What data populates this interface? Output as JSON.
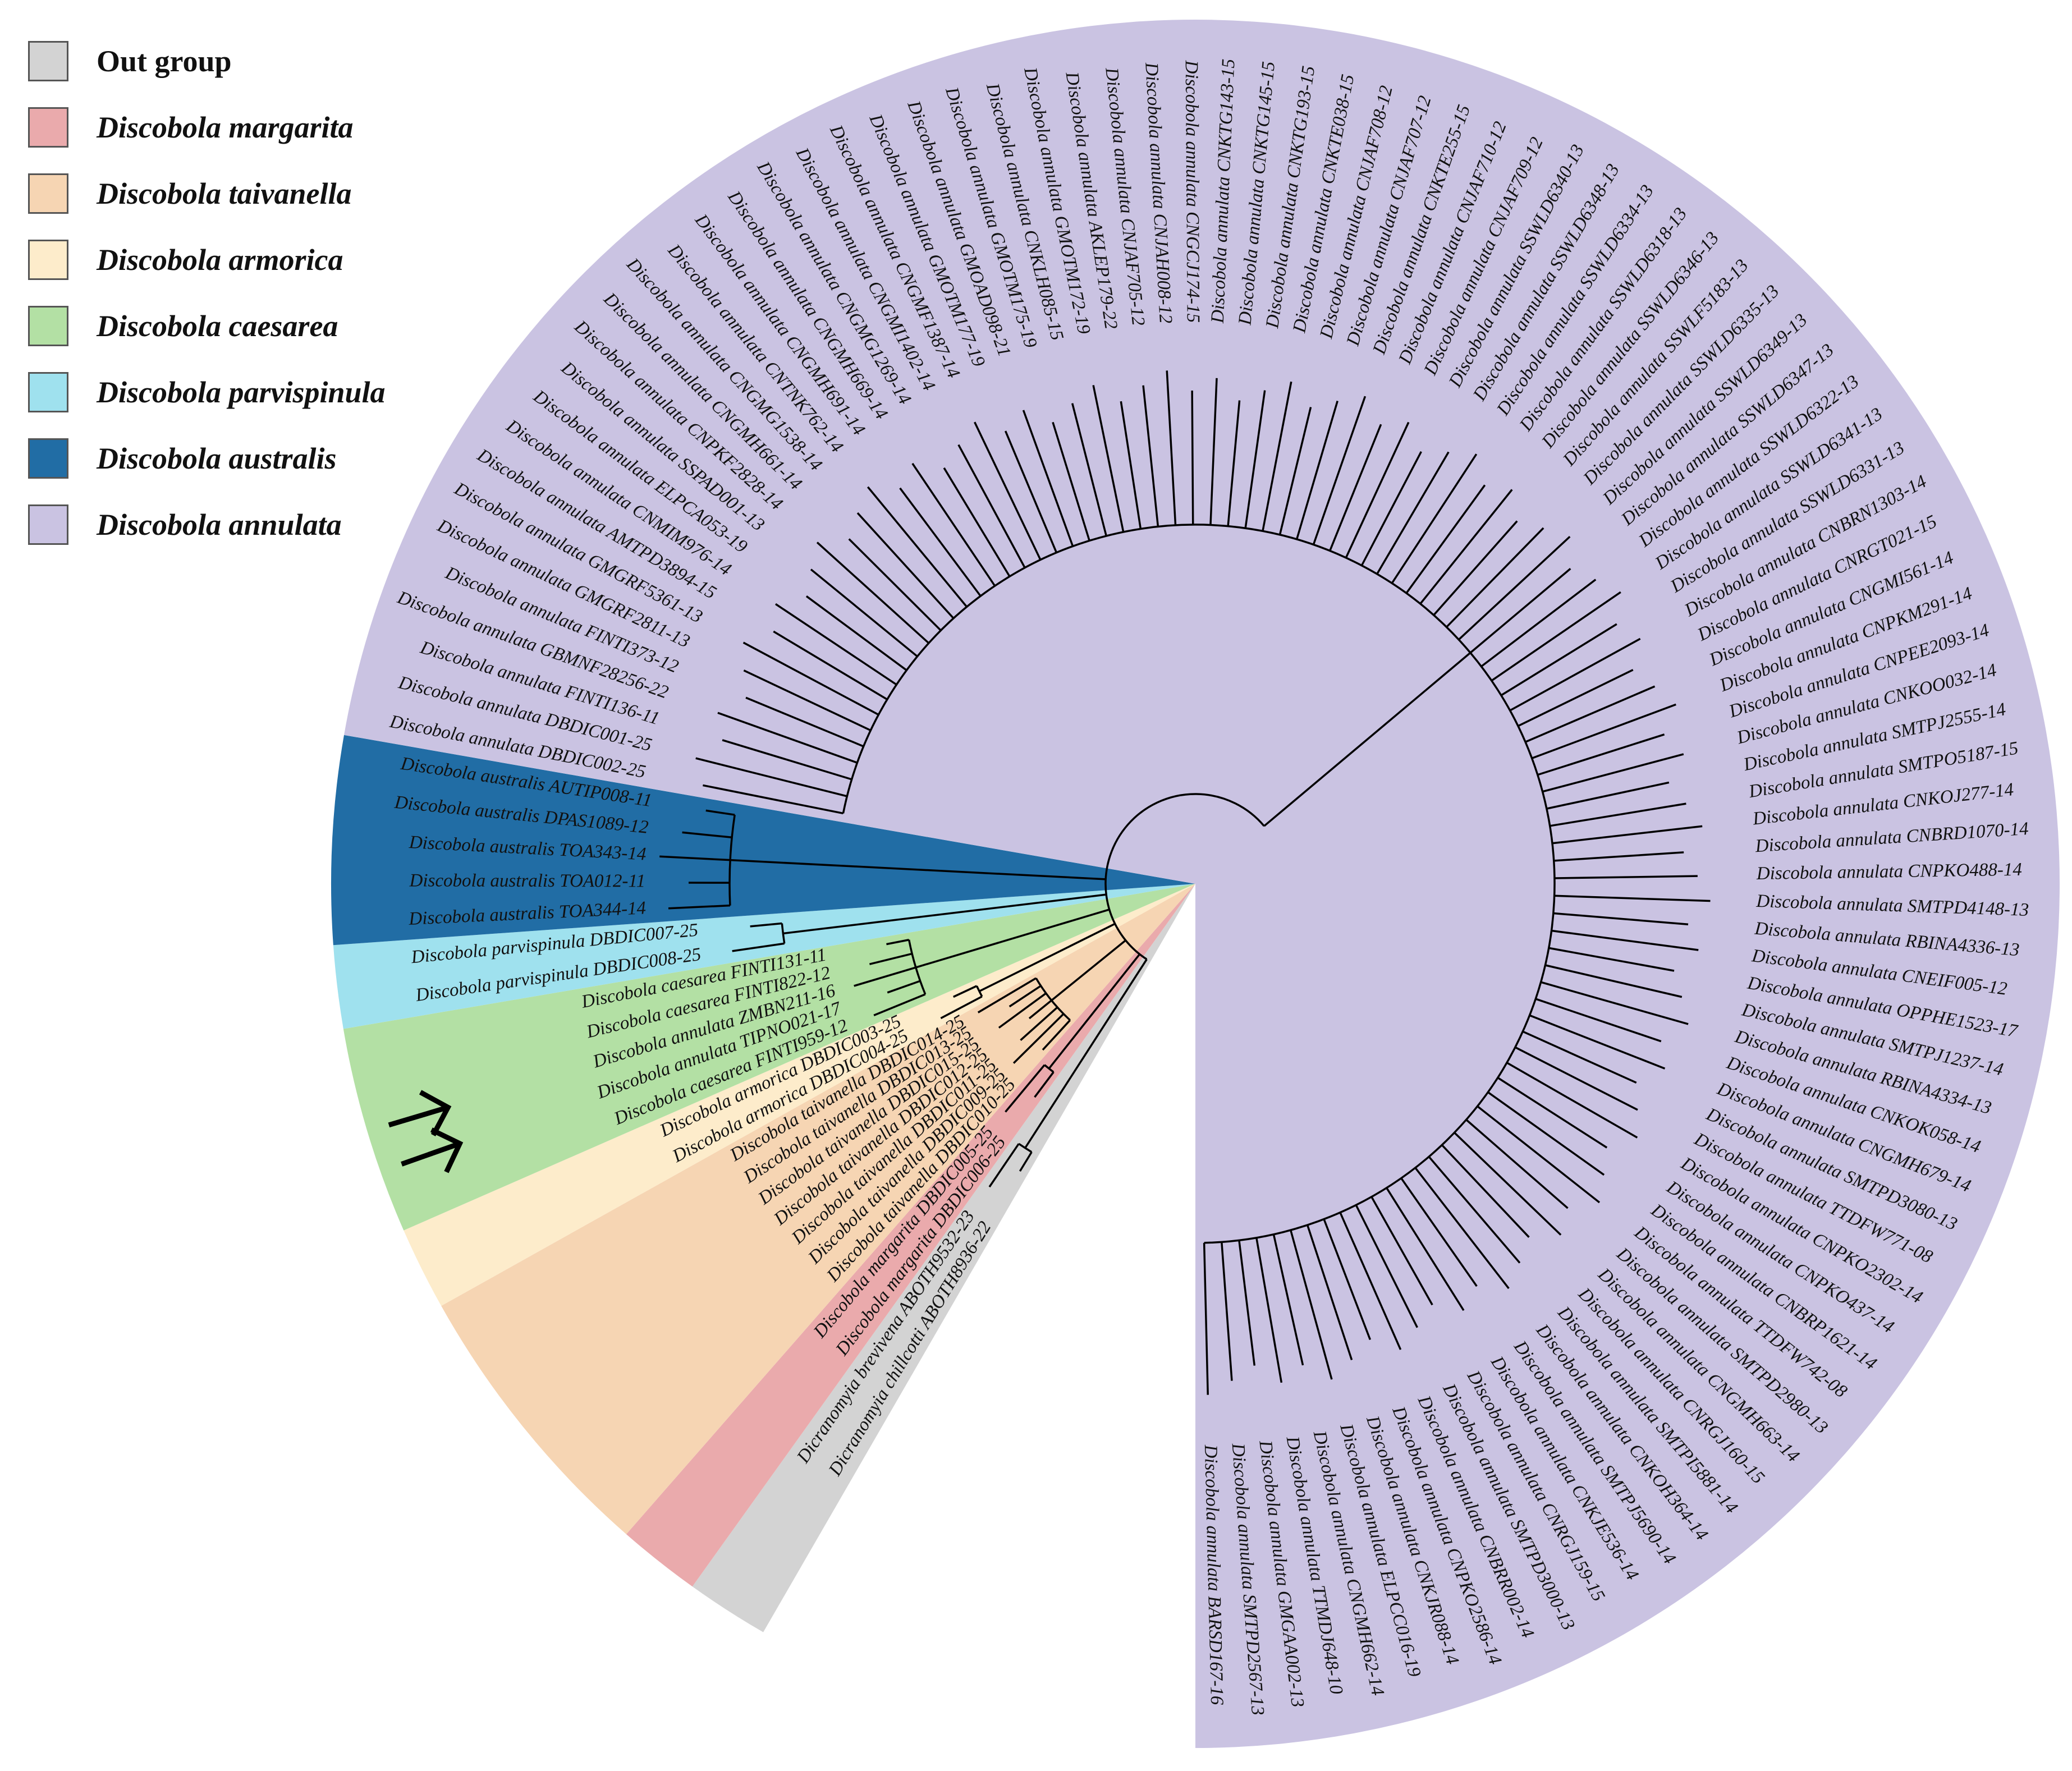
{
  "legend": [
    {
      "label": "Out group",
      "clade": "outgroup",
      "italic": false
    },
    {
      "label": "Discobola margarita",
      "clade": "margarita",
      "italic": true
    },
    {
      "label": "Discobola taivanella",
      "clade": "taivanella",
      "italic": true
    },
    {
      "label": "Discobola armorica",
      "clade": "armorica",
      "italic": true
    },
    {
      "label": "Discobola caesarea",
      "clade": "caesarea",
      "italic": true
    },
    {
      "label": "Discobola parvispinula",
      "clade": "parvispinula",
      "italic": true
    },
    {
      "label": "Discobola australis",
      "clade": "australis",
      "italic": true
    },
    {
      "label": "Discobola annulata",
      "clade": "annulata",
      "italic": true
    }
  ],
  "colors": {
    "outgroup": "#d3d3d3",
    "margarita": "#eaaaac",
    "taivanella": "#f6d5b3",
    "armorica": "#fdeccb",
    "caesarea": "#b3e0a4",
    "parvispinula": "#9fe1ee",
    "australis": "#216da5",
    "annulata": "#cac3e2"
  },
  "tree": {
    "taxa": [
      {
        "label": "Dicranomyia chillcotti ABOTH8936-22",
        "clade": "outgroup"
      },
      {
        "label": "Dicranomyia brevivena ABOTH9532-23",
        "clade": "outgroup"
      },
      {
        "label": "Discobola margarita DBDIC006-25",
        "clade": "margarita"
      },
      {
        "label": "Discobola margarita DBDIC005-25",
        "clade": "margarita"
      },
      {
        "label": "Discobola taivanella DBDIC010-25",
        "clade": "taivanella"
      },
      {
        "label": "Discobola taivanella DBDIC009-25",
        "clade": "taivanella"
      },
      {
        "label": "Discobola taivanella DBDIC011-25",
        "clade": "taivanella"
      },
      {
        "label": "Discobola taivanella DBDIC012-25",
        "clade": "taivanella"
      },
      {
        "label": "Discobola taivanella DBDIC015-25",
        "clade": "taivanella"
      },
      {
        "label": "Discobola taivanella DBDIC013-25",
        "clade": "taivanella"
      },
      {
        "label": "Discobola taivanella DBDIC014-25",
        "clade": "taivanella"
      },
      {
        "label": "Discobola armorica DBDIC004-25",
        "clade": "armorica"
      },
      {
        "label": "Discobola armorica DBDIC003-25",
        "clade": "armorica"
      },
      {
        "label": "Discobola caesarea FINTI959-12",
        "clade": "caesarea"
      },
      {
        "label": "Discobola annulata TIPNO021-17",
        "clade": "caesarea",
        "arrow": true
      },
      {
        "label": "Discobola annulata ZMBN211-16",
        "clade": "caesarea",
        "arrow": true
      },
      {
        "label": "Discobola caesarea FINTI822-12",
        "clade": "caesarea"
      },
      {
        "label": "Discobola caesarea FINTI131-11",
        "clade": "caesarea"
      },
      {
        "label": "Discobola parvispinula DBDIC008-25",
        "clade": "parvispinula"
      },
      {
        "label": "Discobola parvispinula DBDIC007-25",
        "clade": "parvispinula"
      },
      {
        "label": "Discobola australis TOA344-14",
        "clade": "australis"
      },
      {
        "label": "Discobola australis TOA012-11",
        "clade": "australis"
      },
      {
        "label": "Discobola australis TOA343-14",
        "clade": "australis"
      },
      {
        "label": "Discobola australis DPAS1089-12",
        "clade": "australis"
      },
      {
        "label": "Discobola australis AUTIP008-11",
        "clade": "australis"
      },
      {
        "label": "Discobola annulata DBDIC002-25",
        "clade": "annulata"
      },
      {
        "label": "Discobola annulata DBDIC001-25",
        "clade": "annulata"
      },
      {
        "label": "Discobola annulata FINTI136-11",
        "clade": "annulata"
      },
      {
        "label": "Discobola annulata GBMNF28256-22",
        "clade": "annulata"
      },
      {
        "label": "Discobola annulata FINTI373-12",
        "clade": "annulata"
      },
      {
        "label": "Discobola annulata GMGRF2811-13",
        "clade": "annulata"
      },
      {
        "label": "Discobola annulata GMGRF5361-13",
        "clade": "annulata"
      },
      {
        "label": "Discobola annulata AMTPD3894-15",
        "clade": "annulata"
      },
      {
        "label": "Discobola annulata CNMIM976-14",
        "clade": "annulata"
      },
      {
        "label": "Discobola annulata ELPCA053-19",
        "clade": "annulata"
      },
      {
        "label": "Discobola annulata SSPAD001-13",
        "clade": "annulata"
      },
      {
        "label": "Discobola annulata CNPKF2828-14",
        "clade": "annulata"
      },
      {
        "label": "Discobola annulata CNGMH661-14",
        "clade": "annulata"
      },
      {
        "label": "Discobola annulata CNGMG1538-14",
        "clade": "annulata"
      },
      {
        "label": "Discobola annulata CNTNK762-14",
        "clade": "annulata"
      },
      {
        "label": "Discobola annulata CNGMH691-14",
        "clade": "annulata"
      },
      {
        "label": "Discobola annulata CNGMH669-14",
        "clade": "annulata"
      },
      {
        "label": "Discobola annulata CNGMG1269-14",
        "clade": "annulata"
      },
      {
        "label": "Discobola annulata CNGMI1402-14",
        "clade": "annulata"
      },
      {
        "label": "Discobola annulata CNGMF1387-14",
        "clade": "annulata"
      },
      {
        "label": "Discobola annulata GMOTM177-19",
        "clade": "annulata"
      },
      {
        "label": "Discobola annulata GMOAD098-21",
        "clade": "annulata"
      },
      {
        "label": "Discobola annulata GMOTM175-19",
        "clade": "annulata"
      },
      {
        "label": "Discobola annulata CNKLH085-15",
        "clade": "annulata"
      },
      {
        "label": "Discobola annulata GMOTM172-19",
        "clade": "annulata"
      },
      {
        "label": "Discobola annulata AKLEP179-22",
        "clade": "annulata"
      },
      {
        "label": "Discobola annulata CNJAF705-12",
        "clade": "annulata"
      },
      {
        "label": "Discobola annulata CNJAH008-12",
        "clade": "annulata"
      },
      {
        "label": "Discobola annulata CNGCJ174-15",
        "clade": "annulata"
      },
      {
        "label": "Discobola annulata CNKTG143-15",
        "clade": "annulata"
      },
      {
        "label": "Discobola annulata CNKTG145-15",
        "clade": "annulata"
      },
      {
        "label": "Discobola annulata CNKTG193-15",
        "clade": "annulata"
      },
      {
        "label": "Discobola annulata CNKTE038-15",
        "clade": "annulata"
      },
      {
        "label": "Discobola annulata CNJAF708-12",
        "clade": "annulata"
      },
      {
        "label": "Discobola annulata CNJAF707-12",
        "clade": "annulata"
      },
      {
        "label": "Discobola annulata CNKTE255-15",
        "clade": "annulata"
      },
      {
        "label": "Discobola annulata CNJAF710-12",
        "clade": "annulata"
      },
      {
        "label": "Discobola annulata CNJAF709-12",
        "clade": "annulata"
      },
      {
        "label": "Discobola annulata SSWLD6340-13",
        "clade": "annulata"
      },
      {
        "label": "Discobola annulata SSWLD6348-13",
        "clade": "annulata"
      },
      {
        "label": "Discobola annulata SSWLD6334-13",
        "clade": "annulata"
      },
      {
        "label": "Discobola annulata SSWLD6318-13",
        "clade": "annulata"
      },
      {
        "label": "Discobola annulata SSWLD6346-13",
        "clade": "annulata"
      },
      {
        "label": "Discobola annulata SSWLF5183-13",
        "clade": "annulata"
      },
      {
        "label": "Discobola annulata SSWLD6335-13",
        "clade": "annulata"
      },
      {
        "label": "Discobola annulata SSWLD6349-13",
        "clade": "annulata"
      },
      {
        "label": "Discobola annulata SSWLD6347-13",
        "clade": "annulata"
      },
      {
        "label": "Discobola annulata SSWLD6322-13",
        "clade": "annulata"
      },
      {
        "label": "Discobola annulata SSWLD6341-13",
        "clade": "annulata"
      },
      {
        "label": "Discobola annulata SSWLD6331-13",
        "clade": "annulata"
      },
      {
        "label": "Discobola annulata CNBRN1303-14",
        "clade": "annulata"
      },
      {
        "label": "Discobola annulata CNRGT021-15",
        "clade": "annulata"
      },
      {
        "label": "Discobola annulata CNGMI561-14",
        "clade": "annulata"
      },
      {
        "label": "Discobola annulata CNPKM291-14",
        "clade": "annulata"
      },
      {
        "label": "Discobola annulata CNPEE2093-14",
        "clade": "annulata"
      },
      {
        "label": "Discobola annulata CNKOO032-14",
        "clade": "annulata"
      },
      {
        "label": "Discobola annulata SMTPJ2555-14",
        "clade": "annulata"
      },
      {
        "label": "Discobola annulata SMTPO5187-15",
        "clade": "annulata"
      },
      {
        "label": "Discobola annulata CNKOJ277-14",
        "clade": "annulata"
      },
      {
        "label": "Discobola annulata CNBRD1070-14",
        "clade": "annulata"
      },
      {
        "label": "Discobola annulata CNPKO488-14",
        "clade": "annulata"
      },
      {
        "label": "Discobola annulata SMTPD4148-13",
        "clade": "annulata"
      },
      {
        "label": "Discobola annulata RBINA4336-13",
        "clade": "annulata"
      },
      {
        "label": "Discobola annulata CNEIF005-12",
        "clade": "annulata"
      },
      {
        "label": "Discobola annulata OPPHE1523-17",
        "clade": "annulata"
      },
      {
        "label": "Discobola annulata SMTPJ1237-14",
        "clade": "annulata"
      },
      {
        "label": "Discobola annulata RBINA4334-13",
        "clade": "annulata"
      },
      {
        "label": "Discobola annulata CNKOK058-14",
        "clade": "annulata"
      },
      {
        "label": "Discobola annulata CNGMH679-14",
        "clade": "annulata"
      },
      {
        "label": "Discobola annulata SMTPD3080-13",
        "clade": "annulata"
      },
      {
        "label": "Discobola annulata TTDFW771-08",
        "clade": "annulata"
      },
      {
        "label": "Discobola annulata CNPKO2302-14",
        "clade": "annulata"
      },
      {
        "label": "Discobola annulata CNPKO437-14",
        "clade": "annulata"
      },
      {
        "label": "Discobola annulata CNBRP1621-14",
        "clade": "annulata"
      },
      {
        "label": "Discobola annulata TTDFW742-08",
        "clade": "annulata"
      },
      {
        "label": "Discobola annulata SMTPD2980-13",
        "clade": "annulata"
      },
      {
        "label": "Discobola annulata CNGMH663-14",
        "clade": "annulata"
      },
      {
        "label": "Discobola annulata CNRGJ160-15",
        "clade": "annulata"
      },
      {
        "label": "Discobola annulata SMTPI5881-14",
        "clade": "annulata"
      },
      {
        "label": "Discobola annulata CNKOH364-14",
        "clade": "annulata"
      },
      {
        "label": "Discobola annulata SMTPJ5690-14",
        "clade": "annulata"
      },
      {
        "label": "Discobola annulata CNKJE536-14",
        "clade": "annulata"
      },
      {
        "label": "Discobola annulata CNRGJ159-15",
        "clade": "annulata"
      },
      {
        "label": "Discobola annulata SMTPD3000-13",
        "clade": "annulata"
      },
      {
        "label": "Discobola annulata CNBRR002-14",
        "clade": "annulata"
      },
      {
        "label": "Discobola annulata CNPKO2586-14",
        "clade": "annulata"
      },
      {
        "label": "Discobola annulata CNKJR088-14",
        "clade": "annulata"
      },
      {
        "label": "Discobola annulata ELPCC016-19",
        "clade": "annulata"
      },
      {
        "label": "Discobola annulata CNGMH662-14",
        "clade": "annulata"
      },
      {
        "label": "Discobola annulata TTMDJ648-10",
        "clade": "annulata"
      },
      {
        "label": "Discobola annulata GMGAA002-13",
        "clade": "annulata"
      },
      {
        "label": "Discobola annulata SMTPD2567-13",
        "clade": "annulata"
      },
      {
        "label": "Discobola annulata BARSD167-16",
        "clade": "annulata"
      }
    ]
  }
}
